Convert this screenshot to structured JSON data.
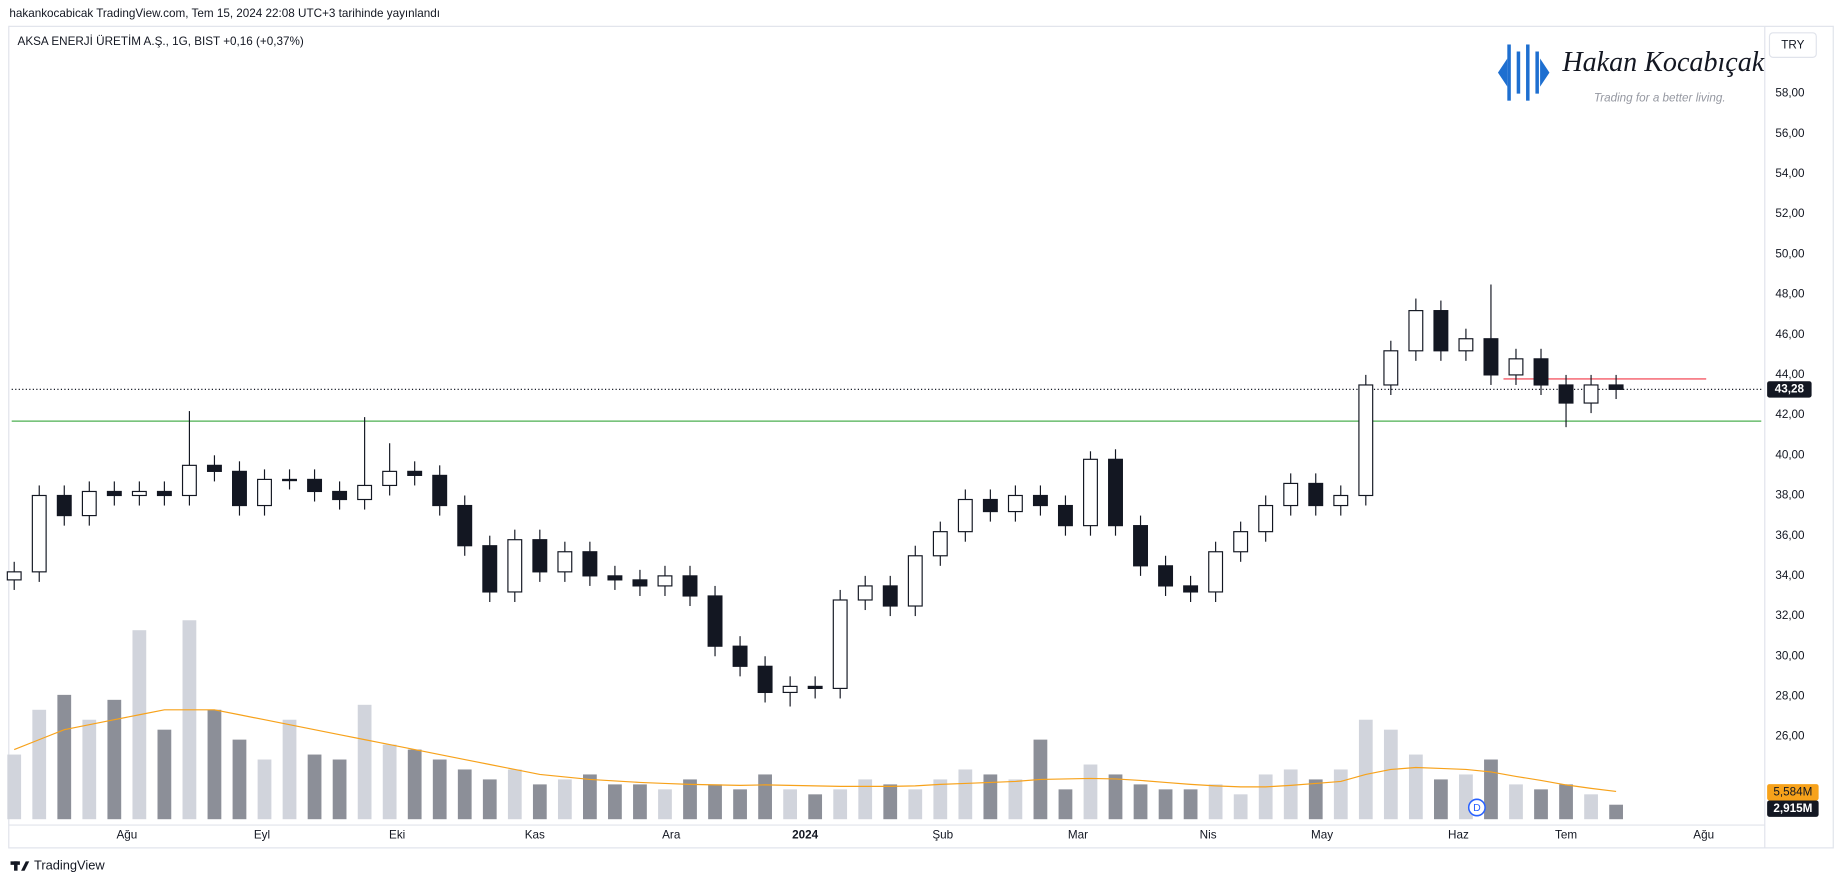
{
  "header": "hakankocabicak TradingView.com, Tem 15, 2024 22:08 UTC+3 tarihinde yayınlandı",
  "footer": "TradingView",
  "watermark": {
    "name": "Hakan Kocabıçak",
    "slogan": "Trading for a better living."
  },
  "chart_data": {
    "type": "candlestick",
    "title": "AKSA ENERJİ ÜRETİM A.Ş., 1G, BIST  +0,16 (+0,37%)",
    "currency": "TRY",
    "up_color": "#ffffff",
    "down_color": "#131722",
    "open": [
      33.8,
      34.2,
      38.0,
      37.0,
      38.2,
      38.0,
      38.2,
      38.0,
      39.5,
      39.2,
      37.5,
      38.8,
      38.8,
      38.2,
      37.8,
      38.5,
      39.2,
      39.0,
      37.5,
      35.5,
      33.2,
      35.8,
      34.2,
      35.2,
      34.0,
      33.8,
      33.5,
      34.0,
      33.0,
      30.5,
      29.5,
      28.2,
      28.5,
      28.4,
      32.8,
      33.5,
      32.5,
      35.0,
      36.2,
      37.8,
      37.2,
      38.0,
      37.5,
      36.5,
      39.8,
      36.5,
      34.5,
      33.5,
      33.2,
      35.2,
      36.2,
      37.5,
      38.6,
      37.5,
      38.0,
      43.5,
      45.2,
      47.2,
      45.2,
      45.8,
      44.0,
      44.8,
      43.5,
      42.6,
      43.5
    ],
    "high": [
      34.7,
      38.5,
      38.5,
      38.7,
      38.7,
      38.7,
      38.7,
      42.2,
      40.0,
      39.7,
      39.3,
      39.3,
      39.3,
      38.7,
      41.9,
      40.6,
      39.7,
      39.5,
      38.0,
      36.0,
      36.3,
      36.3,
      35.7,
      35.7,
      34.5,
      34.3,
      34.5,
      34.5,
      33.5,
      31.0,
      30.0,
      29.0,
      29.0,
      33.3,
      34.0,
      34.0,
      35.5,
      36.7,
      38.3,
      38.3,
      38.5,
      38.5,
      38.0,
      40.2,
      40.3,
      37.0,
      35.0,
      34.0,
      35.7,
      36.7,
      38.0,
      39.1,
      39.1,
      38.5,
      44.0,
      45.7,
      47.8,
      47.7,
      46.3,
      48.5,
      45.3,
      45.3,
      44.0,
      44.0,
      44.0
    ],
    "low": [
      33.3,
      33.7,
      36.5,
      36.5,
      37.5,
      37.5,
      37.5,
      37.5,
      38.7,
      37.0,
      37.0,
      38.3,
      37.7,
      37.3,
      37.3,
      38.0,
      38.5,
      37.0,
      35.0,
      32.7,
      32.7,
      33.7,
      33.7,
      33.5,
      33.3,
      33.0,
      33.0,
      32.5,
      30.0,
      29.0,
      27.7,
      27.5,
      27.9,
      27.9,
      32.3,
      32.0,
      32.0,
      34.5,
      35.7,
      36.7,
      36.7,
      37.0,
      36.0,
      36.0,
      36.0,
      34.0,
      33.0,
      32.7,
      32.7,
      34.7,
      35.7,
      37.0,
      37.0,
      37.0,
      37.5,
      43.0,
      44.7,
      44.7,
      44.7,
      43.5,
      43.5,
      43.0,
      41.4,
      42.1,
      42.8
    ],
    "close": [
      34.2,
      38.0,
      37.0,
      38.2,
      38.0,
      38.2,
      38.0,
      39.5,
      39.2,
      37.5,
      38.8,
      38.8,
      38.2,
      37.8,
      38.5,
      39.2,
      39.0,
      37.5,
      35.5,
      33.2,
      35.8,
      34.2,
      35.2,
      34.0,
      33.8,
      33.5,
      34.0,
      33.0,
      30.5,
      29.5,
      28.2,
      28.5,
      28.4,
      32.8,
      33.5,
      32.5,
      35.0,
      36.2,
      37.8,
      37.2,
      38.0,
      37.5,
      36.5,
      39.8,
      36.5,
      34.5,
      33.5,
      33.2,
      35.2,
      36.2,
      37.5,
      38.6,
      37.5,
      38.0,
      43.5,
      45.2,
      47.2,
      45.2,
      45.8,
      44.0,
      44.8,
      43.5,
      42.6,
      43.5,
      43.28
    ],
    "volume": {
      "up_color": "#d1d4dc",
      "down_color": "#8c8f98",
      "values": [
        13,
        22,
        25,
        20,
        24,
        38,
        18,
        40,
        22,
        16,
        12,
        20,
        13,
        12,
        23,
        15,
        14,
        12,
        10,
        8,
        10,
        7,
        8,
        9,
        7,
        7,
        6,
        8,
        7,
        6,
        9,
        6,
        5,
        6,
        8,
        7,
        6,
        8,
        10,
        9,
        8,
        16,
        6,
        11,
        9,
        7,
        6,
        6,
        7,
        5,
        9,
        10,
        8,
        10,
        20,
        18,
        13,
        8,
        9,
        12,
        7,
        6,
        7,
        5,
        2.915
      ]
    },
    "volume_ma": {
      "color": "#f7a21b",
      "values": [
        14,
        16,
        18,
        19,
        20,
        21,
        22,
        22,
        22,
        21,
        20,
        19,
        18,
        17,
        16,
        15,
        14,
        13,
        12,
        11,
        10,
        9,
        8.5,
        8,
        7.7,
        7.4,
        7.2,
        7.0,
        6.9,
        6.8,
        6.9,
        6.8,
        6.7,
        6.6,
        6.6,
        6.6,
        6.7,
        7.0,
        7.2,
        7.4,
        7.6,
        8.0,
        8.1,
        8.2,
        8.1,
        7.8,
        7.4,
        7.0,
        6.7,
        6.5,
        6.5,
        6.8,
        7.2,
        7.6,
        9.0,
        10.0,
        10.4,
        10.2,
        10.0,
        9.5,
        8.6,
        7.8,
        6.9,
        6.2,
        5.584
      ]
    },
    "volume_ma_label": {
      "value": 5.584,
      "label": "5,584M"
    },
    "volume_label": {
      "value": 2.915,
      "label": "2,915M"
    },
    "last_price": {
      "value": 43.28,
      "label": "43,28"
    },
    "levels": [
      {
        "value": 41.7,
        "color": "#4caf50"
      },
      {
        "value": 43.8,
        "color": "#f23645",
        "x": [
          59.5,
          67.6
        ]
      }
    ],
    "dividend_marker": "D",
    "xlim": [
      -0.1,
      69.8
    ],
    "xticks": [
      {
        "value": 4.5,
        "label": "Ağu"
      },
      {
        "value": 9.9,
        "label": "Eyl"
      },
      {
        "value": 15.3,
        "label": "Eki"
      },
      {
        "value": 20.8,
        "label": "Kas"
      },
      {
        "value": 26.25,
        "label": "Ara"
      },
      {
        "value": 31.6,
        "label": "2024"
      },
      {
        "value": 37.1,
        "label": "Şub"
      },
      {
        "value": 42.5,
        "label": "Mar"
      },
      {
        "value": 47.7,
        "label": "Nis"
      },
      {
        "value": 52.25,
        "label": "May"
      },
      {
        "value": 57.7,
        "label": "Haz"
      },
      {
        "value": 62,
        "label": "Tem"
      },
      {
        "value": 67.5,
        "label": "Ağu"
      }
    ],
    "ylim": [
      21.6,
      61.2
    ],
    "yticks": [
      {
        "value": 26,
        "label": "26,00"
      },
      {
        "value": 28,
        "label": "28,00"
      },
      {
        "value": 30,
        "label": "30,00"
      },
      {
        "value": 32,
        "label": "32,00"
      },
      {
        "value": 34,
        "label": "34,00"
      },
      {
        "value": 36,
        "label": "36,00"
      },
      {
        "value": 38,
        "label": "38,00"
      },
      {
        "value": 40,
        "label": "40,00"
      },
      {
        "value": 42,
        "label": "42,00"
      },
      {
        "value": 44,
        "label": "44,00"
      },
      {
        "value": 46,
        "label": "46,00"
      },
      {
        "value": 48,
        "label": "48,00"
      },
      {
        "value": 50,
        "label": "50,00"
      },
      {
        "value": 52,
        "label": "52,00"
      },
      {
        "value": 54,
        "label": "54,00"
      },
      {
        "value": 56,
        "label": "56,00"
      },
      {
        "value": 58,
        "label": "58,00"
      }
    ],
    "grid": false
  }
}
